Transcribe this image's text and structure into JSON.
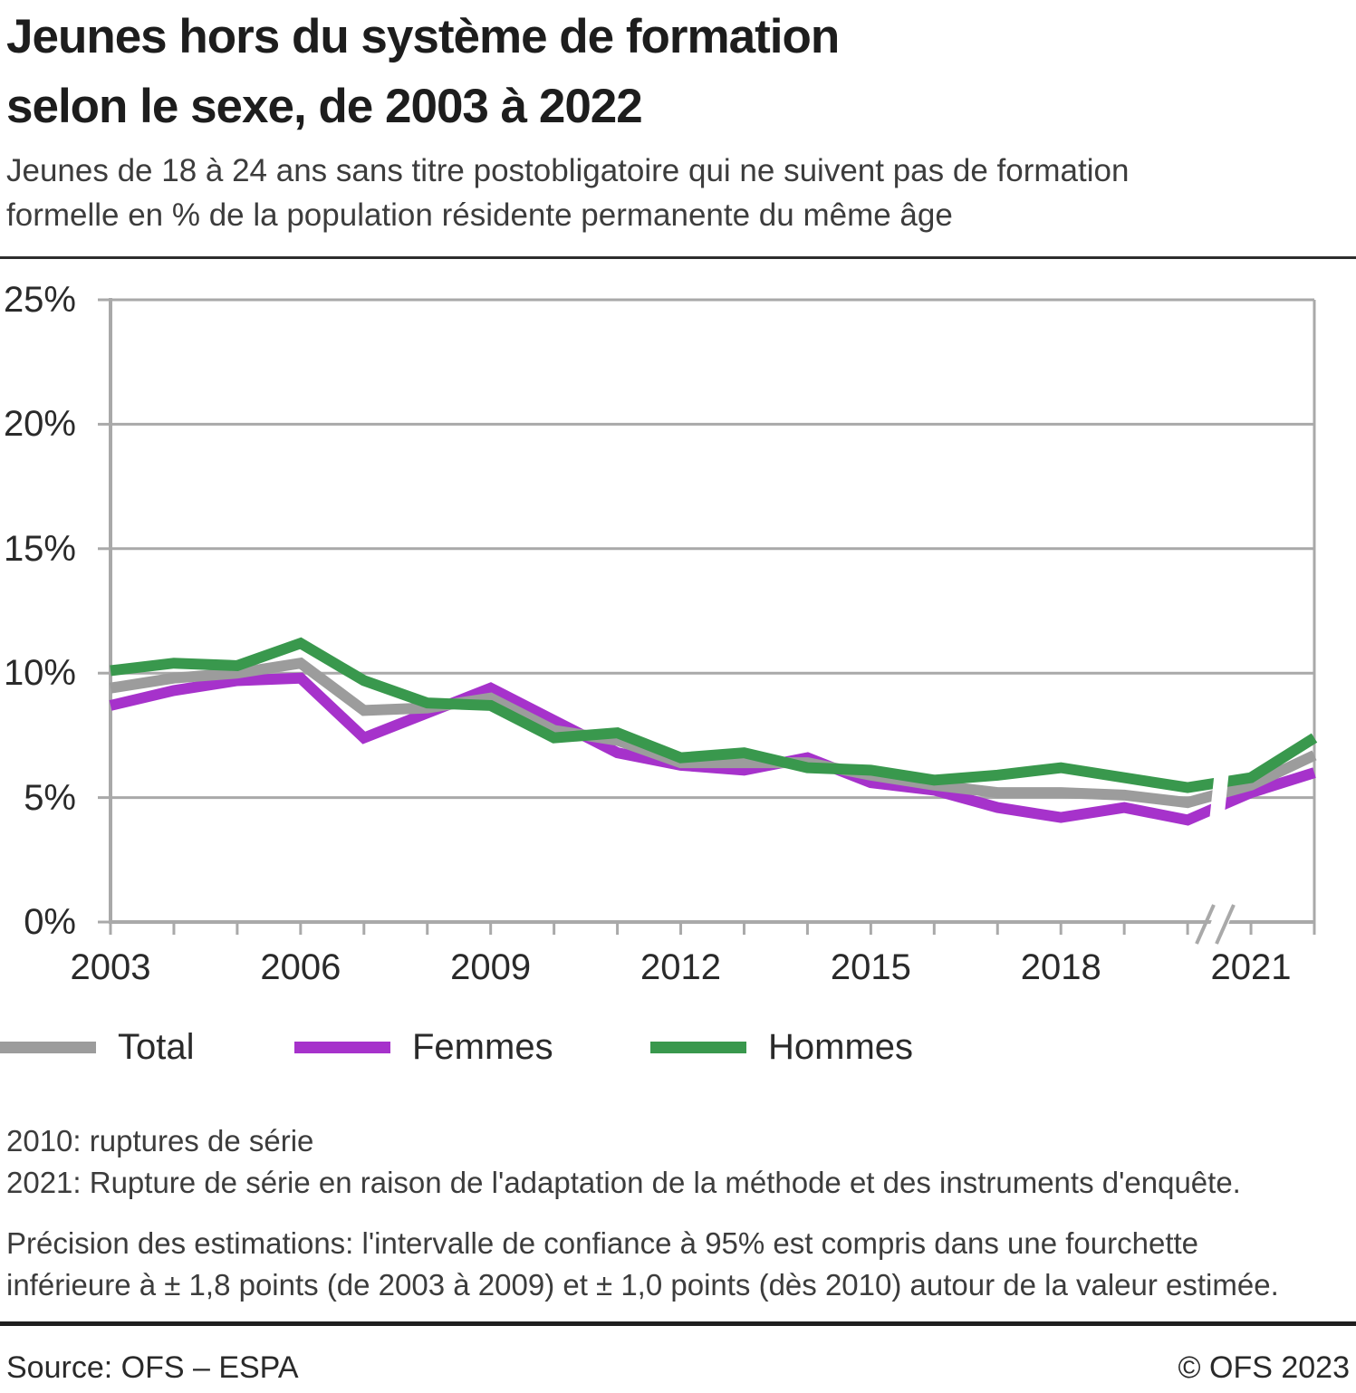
{
  "header": {
    "title_line1": "Jeunes hors du système de formation",
    "title_line2": "selon le sexe, de 2003 à 2022",
    "subtitle_line1": "Jeunes de 18 à 24 ans sans titre postobligatoire qui ne suivent pas de formation",
    "subtitle_line2": "formelle en % de la population résidente permanente du même âge"
  },
  "chart_data": {
    "type": "line",
    "x": [
      2003,
      2004,
      2005,
      2006,
      2007,
      2008,
      2009,
      2010,
      2011,
      2012,
      2013,
      2014,
      2015,
      2016,
      2017,
      2018,
      2019,
      2020,
      2021,
      2022
    ],
    "series": [
      {
        "name": "Total",
        "color": "#9c9c9c",
        "values": [
          9.4,
          9.8,
          10.0,
          10.4,
          8.5,
          8.6,
          9.0,
          7.7,
          7.3,
          6.4,
          6.4,
          6.4,
          5.9,
          5.5,
          5.2,
          5.2,
          5.1,
          4.8,
          5.5,
          6.7
        ]
      },
      {
        "name": "Femmes",
        "color": "#a632cb",
        "values": [
          8.7,
          9.3,
          9.7,
          9.8,
          7.4,
          8.4,
          9.4,
          8.1,
          6.8,
          6.3,
          6.1,
          6.6,
          5.6,
          5.3,
          4.6,
          4.2,
          4.6,
          4.1,
          5.2,
          6.0
        ]
      },
      {
        "name": "Hommes",
        "color": "#39984d",
        "values": [
          10.1,
          10.4,
          10.3,
          11.2,
          9.7,
          8.8,
          8.7,
          7.4,
          7.6,
          6.6,
          6.8,
          6.2,
          6.1,
          5.7,
          5.9,
          6.2,
          5.8,
          5.4,
          5.8,
          7.4
        ]
      }
    ],
    "unit": "%",
    "ylim": [
      0,
      25
    ],
    "ytick_labels": [
      "0%",
      "5%",
      "10%",
      "15%",
      "20%",
      "25%"
    ],
    "xtick_labels": [
      "2003",
      "2006",
      "2009",
      "2012",
      "2015",
      "2018",
      "2021"
    ],
    "xtick_years": [
      2003,
      2006,
      2009,
      2012,
      2015,
      2018,
      2021
    ],
    "grid": "horizontal",
    "legend_position": "bottom-left",
    "series_break": {
      "between_years": [
        2020,
        2021
      ],
      "axis_mark": "//"
    },
    "colors": {
      "grid": "#a9a9a9",
      "axis": "#a9a9a9"
    }
  },
  "footnotes": {
    "note_2010": "2010: ruptures de série",
    "note_2021": "2021: Rupture de série en raison de l'adaptation de la méthode et des instruments d'enquête.",
    "precision_line1": "Précision des estimations: l'intervalle de confiance à 95% est compris dans une fourchette",
    "precision_line2": "inférieure à ± 1,8 points (de 2003 à 2009) et ± 1,0 points (dès 2010) autour de la valeur estimée."
  },
  "footer": {
    "source": "Source: OFS – ESPA",
    "copyright": "© OFS 2023"
  }
}
